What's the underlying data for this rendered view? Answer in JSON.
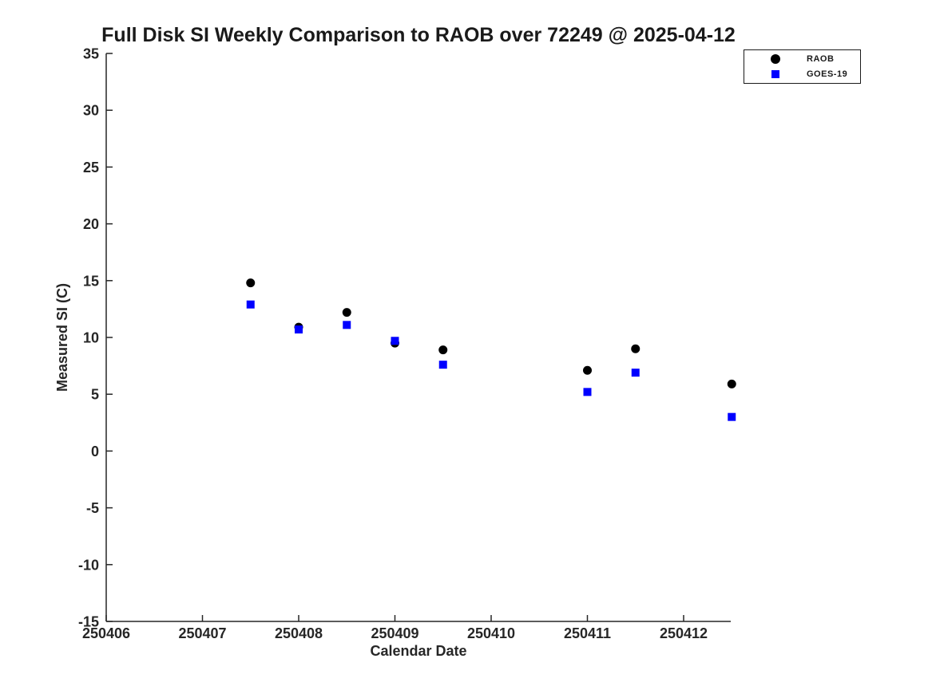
{
  "chart_data": {
    "type": "scatter",
    "title": "Full Disk SI Weekly Comparison to RAOB over 72249 @ 2025-04-12",
    "xlabel": "Calendar Date",
    "ylabel": "Measured SI (C)",
    "xlim": [
      250406,
      250412.5
    ],
    "ylim": [
      -15,
      35
    ],
    "x_ticks": [
      250406,
      250407,
      250408,
      250409,
      250410,
      250411,
      250412
    ],
    "y_ticks": [
      35,
      30,
      25,
      20,
      15,
      10,
      5,
      0,
      -5,
      -10,
      -15
    ],
    "grid": false,
    "legend_position": "top-right",
    "series": [
      {
        "name": "RAOB",
        "marker": "circle",
        "color": "#000000",
        "points": [
          [
            250407.5,
            14.8
          ],
          [
            250408.0,
            10.9
          ],
          [
            250408.5,
            12.2
          ],
          [
            250409.0,
            9.5
          ],
          [
            250409.5,
            8.9
          ],
          [
            250411.0,
            7.1
          ],
          [
            250411.5,
            9.0
          ],
          [
            250412.5,
            5.9
          ]
        ]
      },
      {
        "name": "GOES-19",
        "marker": "square",
        "color": "#0000ff",
        "points": [
          [
            250407.5,
            12.9
          ],
          [
            250408.0,
            10.7
          ],
          [
            250408.5,
            11.1
          ],
          [
            250409.0,
            9.7
          ],
          [
            250409.5,
            7.6
          ],
          [
            250411.0,
            5.2
          ],
          [
            250411.5,
            6.9
          ],
          [
            250412.5,
            3.0
          ]
        ]
      }
    ]
  }
}
